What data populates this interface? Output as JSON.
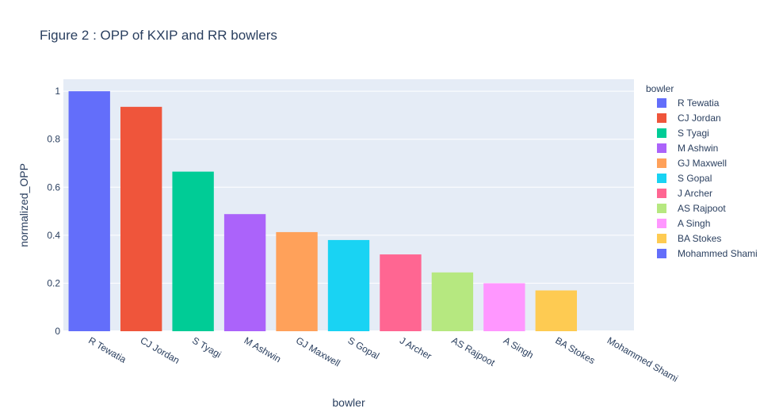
{
  "chart_data": {
    "type": "bar",
    "title": "Figure 2 : OPP of KXIP and RR bowlers",
    "xlabel": "bowler",
    "ylabel": "normalized_OPP",
    "ylim": [
      0,
      1.05
    ],
    "yticks": [
      0,
      0.2,
      0.4,
      0.6,
      0.8,
      1
    ],
    "ytick_labels": [
      "0",
      "0.2",
      "0.4",
      "0.6",
      "0.8",
      "1"
    ],
    "grid": true,
    "legend": {
      "title": "bowler",
      "placement": "right"
    },
    "categories": [
      "R Tewatia",
      "CJ Jordan",
      "S Tyagi",
      "M Ashwin",
      "GJ Maxwell",
      "S Gopal",
      "J Archer",
      "AS Rajpoot",
      "A Singh",
      "BA Stokes",
      "Mohammed Shami"
    ],
    "values": [
      1.0,
      0.935,
      0.665,
      0.488,
      0.413,
      0.38,
      0.32,
      0.245,
      0.2,
      0.17,
      0.0
    ],
    "colors": [
      "#636efa",
      "#EF553B",
      "#00cc96",
      "#ab63fa",
      "#FFA15A",
      "#19d3f3",
      "#FF6692",
      "#B6E880",
      "#FF97FF",
      "#FECB52",
      "#636efa"
    ]
  }
}
